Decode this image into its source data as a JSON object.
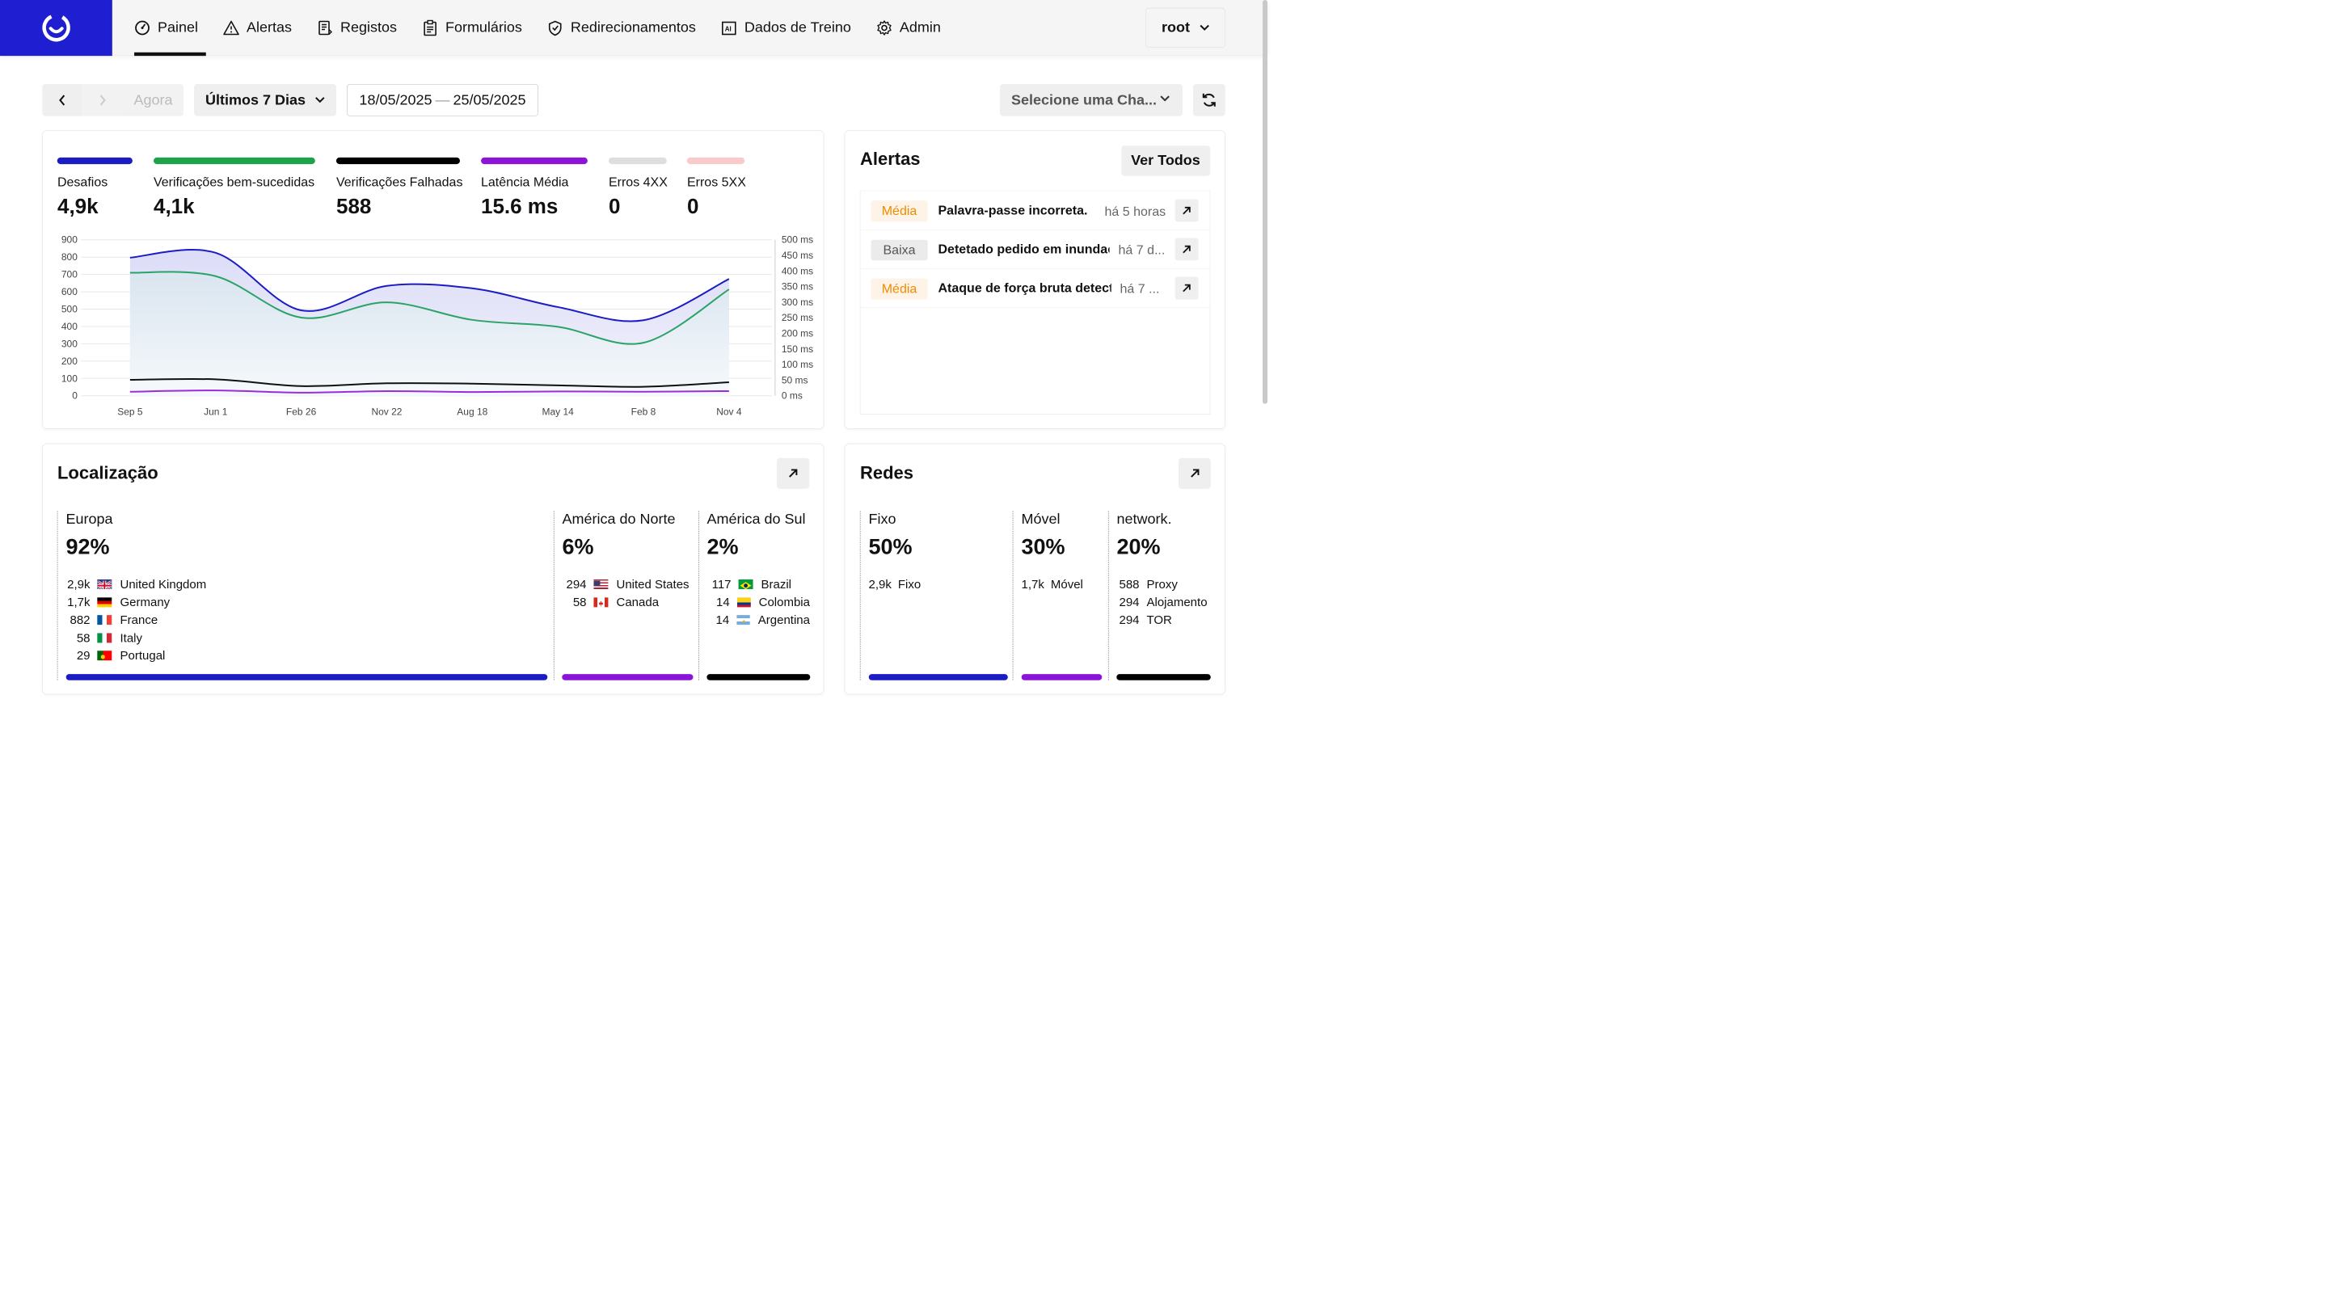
{
  "nav": {
    "items": [
      {
        "label": "Painel",
        "icon": "dashboard-icon"
      },
      {
        "label": "Alertas",
        "icon": "warning-icon"
      },
      {
        "label": "Registos",
        "icon": "logs-icon"
      },
      {
        "label": "Formulários",
        "icon": "clipboard-icon"
      },
      {
        "label": "Redirecionamentos",
        "icon": "shield-check-icon"
      },
      {
        "label": "Dados de Treino",
        "icon": "ai-image-icon"
      },
      {
        "label": "Admin",
        "icon": "gear-icon"
      }
    ],
    "active": "Painel",
    "user": "root"
  },
  "toolbar": {
    "now_label": "Agora",
    "range_label": "Últimos 7 Dias",
    "date_start": "18/05/2025",
    "date_sep": "—",
    "date_end": "25/05/2025",
    "select_key_placeholder": "Selecione uma Cha..."
  },
  "stats": [
    {
      "label": "Desafios",
      "value": "4,9k",
      "color": "#1c1cc4"
    },
    {
      "label": "Verificações bem-sucedidas",
      "value": "4,1k",
      "color": "#1fa34a"
    },
    {
      "label": "Verificações Falhadas",
      "value": "588",
      "color": "#000000"
    },
    {
      "label": "Latência Média",
      "value": "15.6 ms",
      "color": "#8c14d9"
    },
    {
      "label": "Erros 4XX",
      "value": "0",
      "color": "#dedede"
    },
    {
      "label": "Erros 5XX",
      "value": "0",
      "color": "#f9caca"
    }
  ],
  "chart_data": {
    "type": "line",
    "x": [
      "Sep 5",
      "Jun 1",
      "Feb 26",
      "Nov 22",
      "Aug 18",
      "May 14",
      "Feb 8",
      "Nov 4"
    ],
    "y_left_ticks": [
      "900",
      "800",
      "700",
      "600",
      "500",
      "400",
      "300",
      "200",
      "100",
      "0"
    ],
    "y_right_ticks": [
      "500 ms",
      "450 ms",
      "400 ms",
      "350 ms",
      "300 ms",
      "250 ms",
      "200 ms",
      "150 ms",
      "100 ms",
      "50 ms",
      "0 ms"
    ],
    "ylim_left": [
      0,
      900
    ],
    "ylim_right": [
      0,
      500
    ],
    "series": [
      {
        "name": "Desafios",
        "color": "#1c1cc4",
        "axis": "left",
        "values": [
          797,
          825,
          493,
          634,
          620,
          512,
          436,
          674
        ]
      },
      {
        "name": "Verificações bem-sucedidas",
        "color": "#2aa367",
        "axis": "left",
        "values": [
          710,
          690,
          451,
          539,
          438,
          398,
          306,
          614
        ]
      },
      {
        "name": "Verificações Falhadas",
        "color": "#111111",
        "axis": "left",
        "values": [
          92,
          95,
          56,
          72,
          70,
          60,
          52,
          78
        ]
      },
      {
        "name": "Latência Média",
        "color": "#9b2bdc",
        "axis": "right",
        "values": [
          13,
          17,
          10,
          15,
          12,
          14,
          13,
          15
        ]
      }
    ],
    "grid": true
  },
  "alerts": {
    "title": "Alertas",
    "view_all": "Ver Todos",
    "items": [
      {
        "severity": "Média",
        "level": "media",
        "message": "Palavra-passe incorreta.",
        "time": "há 5 horas"
      },
      {
        "severity": "Baixa",
        "level": "baixa",
        "message": "Detetado pedido em inundaç",
        "time": "há 7 d..."
      },
      {
        "severity": "Média",
        "level": "media",
        "message": "Ataque de força bruta detect",
        "time": "há 7 ..."
      }
    ]
  },
  "location": {
    "title": "Localização",
    "regions": [
      {
        "name": "Europa",
        "pct": "92%",
        "color": "#1c1cc4",
        "rows": [
          {
            "count": "2,9k",
            "country": "United Kingdom",
            "flag": "gb"
          },
          {
            "count": "1,7k",
            "country": "Germany",
            "flag": "de"
          },
          {
            "count": "882",
            "country": "France",
            "flag": "fr"
          },
          {
            "count": "58",
            "country": "Italy",
            "flag": "it"
          },
          {
            "count": "29",
            "country": "Portugal",
            "flag": "pt"
          }
        ]
      },
      {
        "name": "América do Norte",
        "pct": "6%",
        "color": "#8c14d9",
        "rows": [
          {
            "count": "294",
            "country": "United States",
            "flag": "us"
          },
          {
            "count": "58",
            "country": "Canada",
            "flag": "ca"
          }
        ]
      },
      {
        "name": "América do Sul",
        "pct": "2%",
        "color": "#000000",
        "rows": [
          {
            "count": "117",
            "country": "Brazil",
            "flag": "br"
          },
          {
            "count": "14",
            "country": "Colombia",
            "flag": "co"
          },
          {
            "count": "14",
            "country": "Argentina",
            "flag": "ar"
          }
        ]
      }
    ]
  },
  "networks": {
    "title": "Redes",
    "groups": [
      {
        "name": "Fixo",
        "pct": "50%",
        "color": "#1c1cc4",
        "rows": [
          {
            "count": "2,9k",
            "label": "Fixo"
          }
        ]
      },
      {
        "name": "Móvel",
        "pct": "30%",
        "color": "#8c14d9",
        "rows": [
          {
            "count": "1,7k",
            "label": "Móvel"
          }
        ]
      },
      {
        "name": "network.",
        "pct": "20%",
        "color": "#000000",
        "rows": [
          {
            "count": "588",
            "label": "Proxy"
          },
          {
            "count": "294",
            "label": "Alojamento"
          },
          {
            "count": "294",
            "label": "TOR"
          }
        ]
      }
    ]
  }
}
